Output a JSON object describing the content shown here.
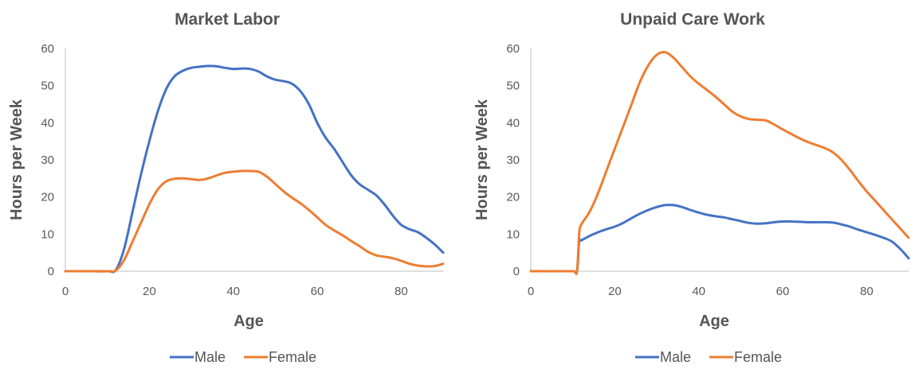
{
  "colors": {
    "male": "#4472C4",
    "female": "#ED7D31",
    "axis": "#BFBFBF",
    "text": "#595959"
  },
  "chart_data": [
    {
      "type": "line",
      "title": "Market Labor",
      "xlabel": "Age",
      "ylabel": "Hours per Week",
      "xlim": [
        0,
        90
      ],
      "ylim": [
        0,
        60
      ],
      "x_ticks": [
        "0",
        "20",
        "40",
        "60",
        "80"
      ],
      "y_ticks": [
        "0",
        "10",
        "20",
        "30",
        "40",
        "50",
        "60"
      ],
      "grid": false,
      "legend": "bottom",
      "series": [
        {
          "name": "Male",
          "color": "#4472C4",
          "x": [
            0,
            5,
            10,
            12,
            14,
            16,
            18,
            20,
            22,
            24,
            26,
            28,
            30,
            32,
            34,
            36,
            38,
            40,
            42,
            44,
            46,
            48,
            50,
            52,
            54,
            56,
            58,
            60,
            62,
            64,
            66,
            68,
            70,
            72,
            74,
            76,
            78,
            80,
            82,
            84,
            86,
            88,
            90
          ],
          "y": [
            0,
            0,
            0,
            0.3,
            6,
            16,
            26,
            35,
            43,
            49,
            52.5,
            54,
            54.8,
            55.1,
            55.3,
            55.2,
            54.8,
            54.5,
            54.6,
            54.5,
            53.8,
            52.5,
            51.6,
            51.2,
            50.5,
            48.5,
            45,
            40,
            36,
            33,
            29.5,
            26,
            23.5,
            22,
            20.5,
            18,
            15,
            12.5,
            11.3,
            10.5,
            9,
            7.2,
            5
          ]
        },
        {
          "name": "Female",
          "color": "#ED7D31",
          "x": [
            0,
            5,
            10,
            12,
            14,
            16,
            18,
            20,
            22,
            24,
            26,
            28,
            30,
            32,
            34,
            36,
            38,
            40,
            42,
            44,
            46,
            48,
            50,
            52,
            54,
            56,
            58,
            60,
            62,
            64,
            66,
            68,
            70,
            72,
            74,
            76,
            78,
            80,
            82,
            84,
            86,
            88,
            90
          ],
          "y": [
            0,
            0,
            0,
            0.2,
            3,
            8,
            13,
            18,
            22,
            24.2,
            24.9,
            25,
            24.8,
            24.6,
            25,
            25.8,
            26.5,
            26.8,
            27,
            27,
            26.8,
            25.5,
            23.5,
            21.5,
            19.8,
            18.3,
            16.5,
            14.5,
            12.5,
            11,
            9.7,
            8.2,
            6.8,
            5.3,
            4.3,
            3.9,
            3.5,
            2.8,
            2,
            1.5,
            1.3,
            1.4,
            2
          ]
        }
      ]
    },
    {
      "type": "line",
      "title": "Unpaid Care Work",
      "xlabel": "Age",
      "ylabel": "Hours per Week",
      "xlim": [
        0,
        90
      ],
      "ylim": [
        0,
        60
      ],
      "x_ticks": [
        "0",
        "20",
        "40",
        "60",
        "80"
      ],
      "y_ticks": [
        "0",
        "10",
        "20",
        "30",
        "40",
        "50",
        "60"
      ],
      "grid": false,
      "legend": "bottom",
      "series": [
        {
          "name": "Male",
          "color": "#4472C4",
          "x": [
            0,
            5,
            10,
            11,
            11.5,
            12,
            14,
            16,
            18,
            20,
            22,
            24,
            26,
            28,
            30,
            32,
            34,
            36,
            38,
            40,
            42,
            44,
            46,
            48,
            50,
            52,
            54,
            56,
            58,
            60,
            62,
            64,
            66,
            68,
            70,
            72,
            74,
            76,
            78,
            80,
            82,
            84,
            86,
            88,
            90
          ],
          "y": [
            0,
            0,
            0,
            0,
            8,
            8.3,
            9.5,
            10.5,
            11.3,
            12,
            13,
            14.3,
            15.5,
            16.5,
            17.3,
            17.8,
            17.8,
            17.3,
            16.5,
            15.8,
            15.2,
            14.8,
            14.5,
            14,
            13.5,
            13,
            12.8,
            12.9,
            13.2,
            13.4,
            13.4,
            13.3,
            13.2,
            13.2,
            13.2,
            13.1,
            12.6,
            12,
            11.2,
            10.5,
            9.8,
            9,
            8,
            6,
            3.5
          ]
        },
        {
          "name": "Female",
          "color": "#ED7D31",
          "x": [
            0,
            5,
            10,
            11,
            11.5,
            12,
            14,
            16,
            18,
            20,
            22,
            24,
            26,
            28,
            30,
            32,
            34,
            36,
            38,
            40,
            42,
            44,
            46,
            48,
            50,
            52,
            54,
            56,
            58,
            60,
            62,
            64,
            66,
            68,
            70,
            72,
            74,
            76,
            78,
            80,
            82,
            84,
            86,
            88,
            90
          ],
          "y": [
            0,
            0,
            0,
            0,
            10,
            12.5,
            16,
            21,
            27,
            33,
            39,
            45,
            51,
            55.5,
            58.3,
            59,
            57.5,
            55,
            52.5,
            50.5,
            48.8,
            47,
            45,
            43,
            41.7,
            41,
            40.8,
            40.6,
            39.5,
            38.2,
            37,
            35.8,
            34.8,
            34,
            33.2,
            32,
            30,
            27.3,
            24.3,
            21.5,
            19,
            16.5,
            14,
            11.5,
            9
          ]
        }
      ]
    }
  ]
}
